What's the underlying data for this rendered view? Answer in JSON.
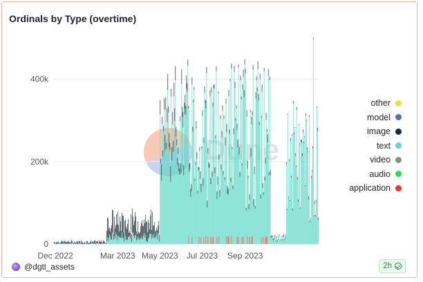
{
  "title": "Ordinals by Type (overtime)",
  "footer": {
    "user": "@dgtl_assets",
    "refresh": "2h"
  },
  "watermark": "Dune",
  "legend": [
    {
      "name": "other",
      "color": "#e8e337"
    },
    {
      "name": "model",
      "color": "#5470a8"
    },
    {
      "name": "image",
      "color": "#1b2a33"
    },
    {
      "name": "text",
      "color": "#5fd8c4"
    },
    {
      "name": "video",
      "color": "#8c8c8c"
    },
    {
      "name": "audio",
      "color": "#2fd65a"
    },
    {
      "name": "application",
      "color": "#e23b2e"
    }
  ],
  "chart_data": {
    "type": "bar",
    "stacked": true,
    "title": "Ordinals by Type (overtime)",
    "x_ticks": [
      "Dec 2022",
      "Mar 2023",
      "May 2023",
      "Jul 2023",
      "Sep 2023"
    ],
    "y_ticks": [
      "0",
      "200k",
      "400k"
    ],
    "ylim": [
      0,
      520000
    ],
    "grid": true,
    "legend_position": "right",
    "series_colors": {
      "image": "#1b2a33",
      "text": "#5fd8c4",
      "application": "#e23b2e"
    },
    "phases": [
      {
        "period": "Dec 2022 – mid Feb 2023",
        "image": [
          500,
          8000
        ],
        "text": [
          0,
          2000
        ]
      },
      {
        "period": "mid Feb 2023 – late Apr 2023",
        "image": [
          10000,
          60000
        ],
        "text": [
          5000,
          30000
        ]
      },
      {
        "period": "early May 2023 – mid Jun 2023",
        "image": [
          10000,
          40000
        ],
        "text": [
          150000,
          400000
        ]
      },
      {
        "period": "mid Jun 2023 – early Oct 2023",
        "image": [
          5000,
          20000
        ],
        "text": [
          80000,
          440000
        ],
        "application": [
          0,
          20000
        ]
      },
      {
        "period": "mid Oct 2023 – early Nov 2023",
        "image": [
          1000,
          5000
        ],
        "text": [
          5000,
          20000
        ]
      },
      {
        "period": "Nov 2023 – mid Dec 2023",
        "image": [
          2000,
          8000
        ],
        "text": [
          50000,
          500000
        ]
      }
    ],
    "peak_value": 500000
  }
}
